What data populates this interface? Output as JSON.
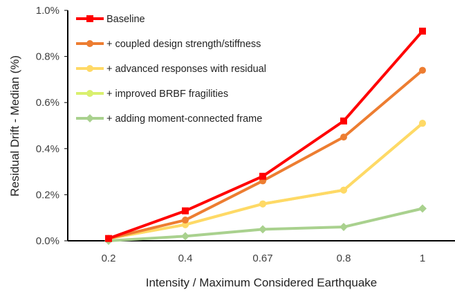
{
  "chart_data": {
    "type": "line",
    "xlabel": "Intensity / Maximum Considered Earthquake",
    "ylabel": "Residual Drift - Median (%)",
    "categories": [
      "0.2",
      "0.4",
      "0.67",
      "0.8",
      "1"
    ],
    "yticks": [
      "0.0%",
      "0.2%",
      "0.4%",
      "0.6%",
      "0.8%",
      "1.0%"
    ],
    "ylim": [
      0,
      1.0
    ],
    "grid": false,
    "legend_position": "top-left",
    "series": [
      {
        "name": "Baseline",
        "color": "#ff0000",
        "marker": "square",
        "values": [
          0.01,
          0.13,
          0.28,
          0.52,
          0.91
        ]
      },
      {
        "name": "+ coupled design strength/stiffness",
        "color": "#ed7d31",
        "marker": "circle",
        "values": [
          0.01,
          0.09,
          0.26,
          0.45,
          0.74
        ]
      },
      {
        "name": "+ advanced responses with residual",
        "color": "#ffd966",
        "marker": "circle",
        "values": [
          0.01,
          0.07,
          0.16,
          0.22,
          0.51
        ]
      },
      {
        "name": "+ improved BRBF fragilities",
        "color": "#d9f06e",
        "marker": "circle",
        "values": [
          0.01,
          0.07,
          0.16,
          0.22,
          0.51
        ]
      },
      {
        "name": "+ adding moment-connected frame",
        "color": "#a9d18e",
        "marker": "diamond",
        "values": [
          0.0,
          0.02,
          0.05,
          0.06,
          0.14
        ]
      }
    ]
  }
}
